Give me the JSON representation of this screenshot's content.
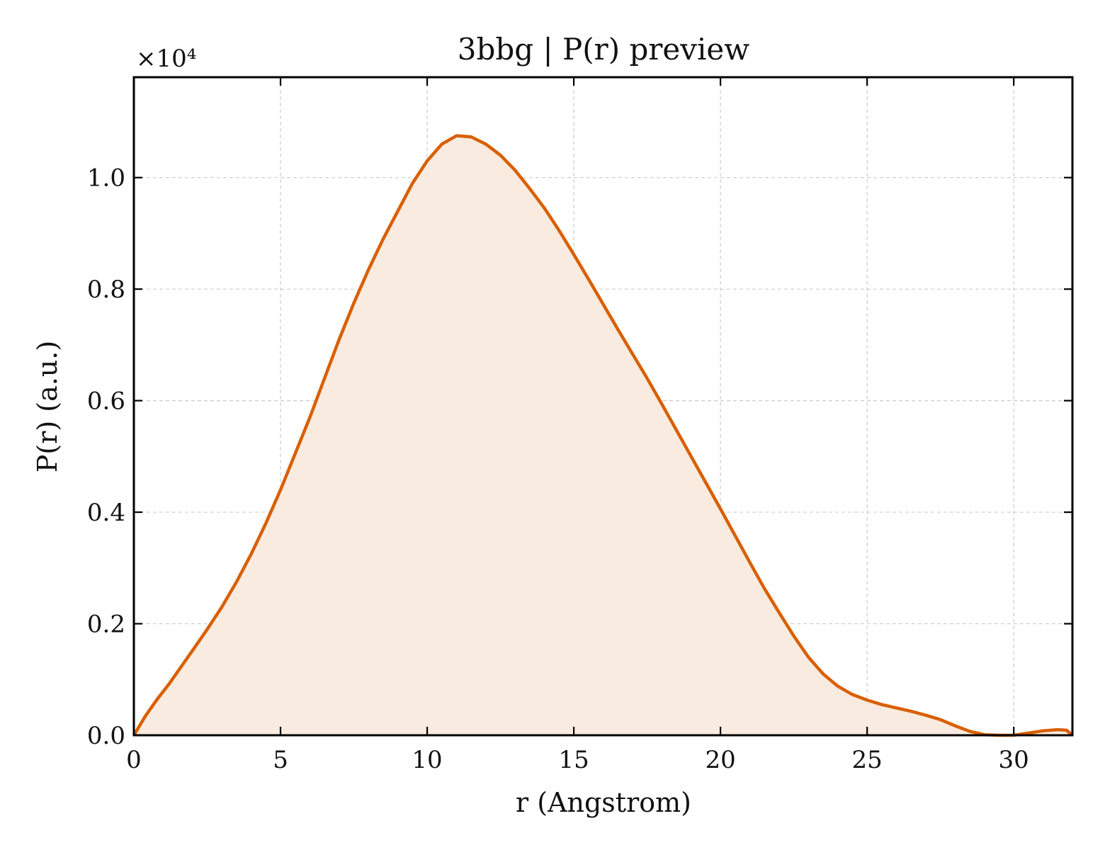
{
  "chart_data": {
    "type": "area",
    "title": "3bbg | P(r) preview",
    "xlabel": "r (Angstrom)",
    "ylabel": "P(r) (a.u.)",
    "y_scale_label": "×10⁴",
    "xlim": [
      0,
      32
    ],
    "ylim": [
      0,
      1.18
    ],
    "xticks": [
      0,
      5,
      10,
      15,
      20,
      25,
      30
    ],
    "xtick_labels": [
      "0",
      "5",
      "10",
      "15",
      "20",
      "25",
      "30"
    ],
    "yticks": [
      0.0,
      0.2,
      0.4,
      0.6,
      0.8,
      1.0
    ],
    "ytick_labels": [
      "0.0",
      "0.2",
      "0.4",
      "0.6",
      "0.8",
      "1.0"
    ],
    "grid": true,
    "line_color": "#d95f02",
    "fill_color": "#f9ebe0",
    "series": [
      {
        "x": [
          0,
          0.4,
          0.8,
          1.2,
          1.6,
          2.0,
          2.5,
          3.0,
          3.5,
          4.0,
          4.5,
          5.0,
          5.5,
          6.0,
          6.5,
          7.0,
          7.5,
          8.0,
          8.5,
          9.0,
          9.5,
          10.0,
          10.5,
          11.0,
          11.5,
          12.0,
          12.5,
          13.0,
          13.5,
          14.0,
          14.5,
          15.0,
          15.5,
          16.0,
          16.5,
          17.0,
          17.5,
          18.0,
          18.5,
          19.0,
          19.5,
          20.0,
          20.5,
          21.0,
          21.5,
          22.0,
          22.5,
          23.0,
          23.5,
          24.0,
          24.5,
          25.0,
          25.5,
          26.0,
          26.5,
          27.0,
          27.5,
          28.0,
          28.5,
          29.0,
          29.5,
          30.0,
          30.5,
          31.0,
          31.5,
          31.8,
          32.0
        ],
        "y": [
          0.0,
          0.035,
          0.065,
          0.092,
          0.122,
          0.152,
          0.19,
          0.23,
          0.275,
          0.325,
          0.38,
          0.44,
          0.505,
          0.57,
          0.64,
          0.71,
          0.775,
          0.835,
          0.89,
          0.94,
          0.99,
          1.03,
          1.06,
          1.075,
          1.073,
          1.06,
          1.04,
          1.013,
          0.98,
          0.945,
          0.905,
          0.862,
          0.818,
          0.773,
          0.728,
          0.684,
          0.64,
          0.594,
          0.547,
          0.5,
          0.453,
          0.406,
          0.358,
          0.31,
          0.263,
          0.22,
          0.178,
          0.14,
          0.11,
          0.088,
          0.073,
          0.063,
          0.055,
          0.049,
          0.043,
          0.036,
          0.028,
          0.017,
          0.007,
          0.001,
          0.0,
          0.0,
          0.004,
          0.008,
          0.01,
          0.009,
          0.0
        ]
      }
    ]
  }
}
